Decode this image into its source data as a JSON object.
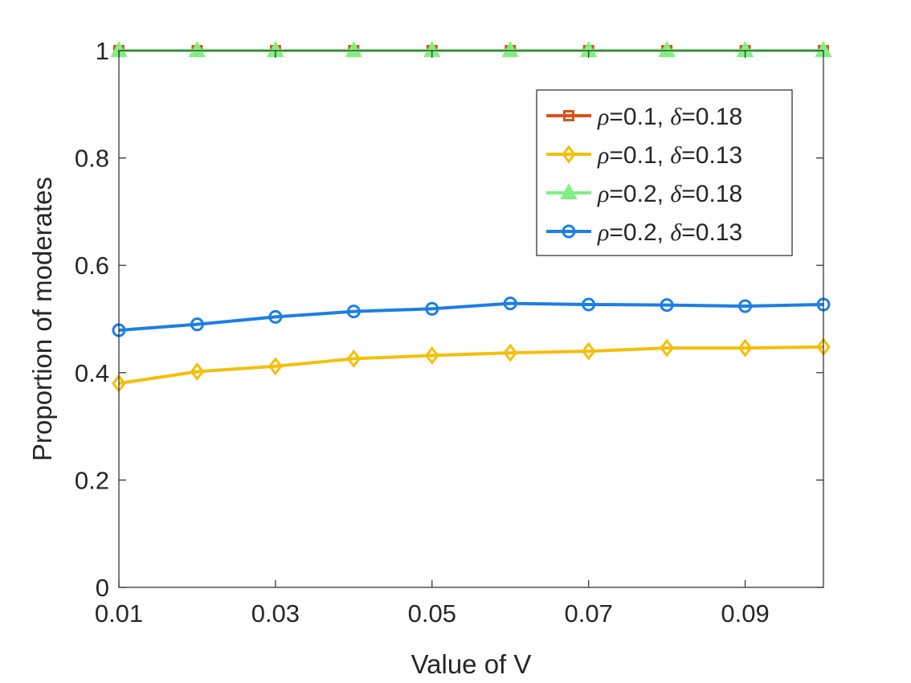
{
  "chart_data": {
    "type": "line",
    "title": "",
    "xlabel": "Value of V",
    "ylabel": "Proportion of moderates",
    "xlim": [
      0.01,
      0.1
    ],
    "ylim": [
      0,
      1
    ],
    "xticks": [
      0.01,
      0.03,
      0.05,
      0.07,
      0.09
    ],
    "xtick_labels": [
      "0.01",
      "0.03",
      "0.05",
      "0.07",
      "0.09"
    ],
    "yticks": [
      0,
      0.2,
      0.4,
      0.6,
      0.8,
      1
    ],
    "ytick_labels": [
      "0",
      "0.2",
      "0.4",
      "0.6",
      "0.8",
      "1"
    ],
    "x": [
      0.01,
      0.02,
      0.03,
      0.04,
      0.05,
      0.06,
      0.07,
      0.08,
      0.09,
      0.1
    ],
    "legend_position": "top-right",
    "grid": false,
    "series": [
      {
        "name": "ρ=0.1, δ=0.18",
        "rho": "0.1",
        "delta": "0.18",
        "color": "#D95319",
        "marker": "square",
        "values": [
          1,
          1,
          1,
          1,
          1,
          1,
          1,
          1,
          1,
          1
        ]
      },
      {
        "name": "ρ=0.1, δ=0.13",
        "rho": "0.1",
        "delta": "0.13",
        "color": "#F5BE0B",
        "marker": "diamond",
        "values": [
          0.38,
          0.402,
          0.412,
          0.426,
          0.432,
          0.437,
          0.44,
          0.446,
          0.446,
          0.448
        ]
      },
      {
        "name": "ρ=0.2, δ=0.18",
        "rho": "0.2",
        "delta": "0.18",
        "color": "#80F080",
        "marker": "triangle",
        "values": [
          1,
          1,
          1,
          1,
          1,
          1,
          1,
          1,
          1,
          1
        ]
      },
      {
        "name": "ρ=0.2, δ=0.13",
        "rho": "0.2",
        "delta": "0.13",
        "color": "#1A7FE5",
        "marker": "circle",
        "values": [
          0.479,
          0.49,
          0.504,
          0.514,
          0.519,
          0.529,
          0.527,
          0.526,
          0.524,
          0.527
        ]
      }
    ],
    "legend_symbols": {
      "rho": "ρ",
      "delta": "δ"
    }
  }
}
